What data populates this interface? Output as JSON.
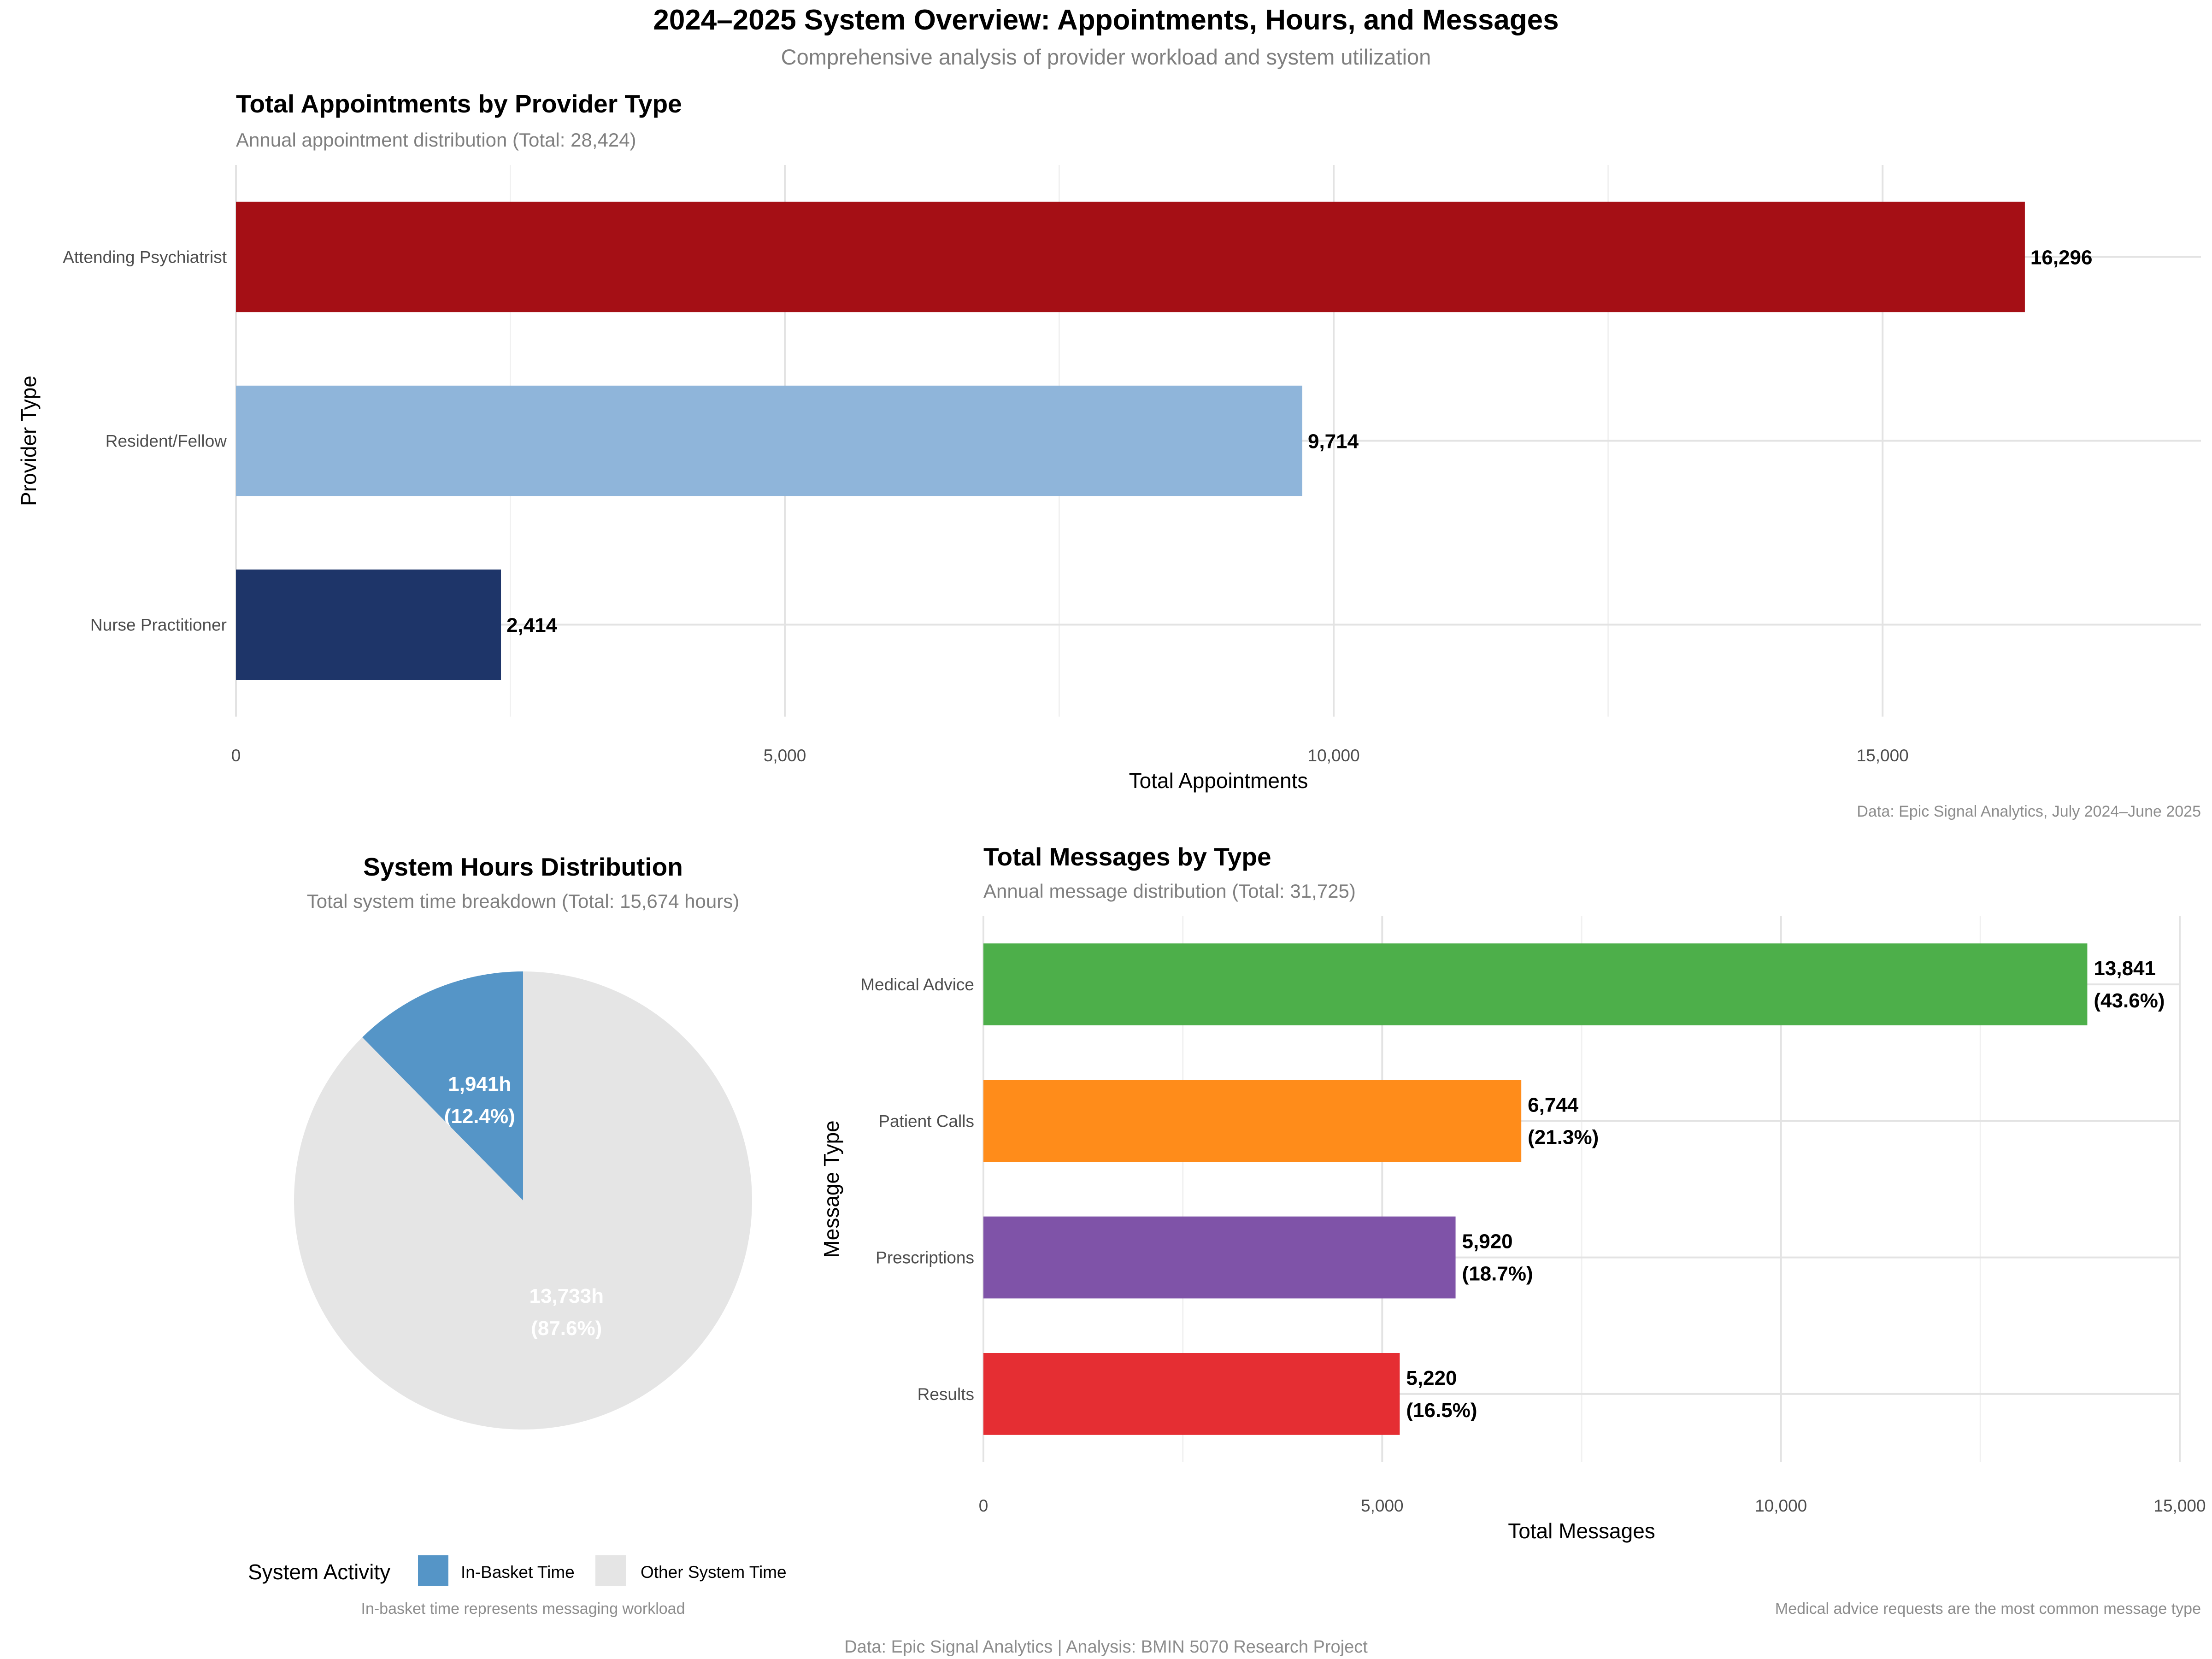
{
  "page": {
    "title": "2024–2025 System Overview: Appointments, Hours, and Messages",
    "subtitle": "Comprehensive analysis of provider workload and system utilization",
    "caption": "Data: Epic Signal Analytics | Analysis: BMIN 5070 Research Project"
  },
  "chart_data": [
    {
      "id": "appointments",
      "type": "bar",
      "orientation": "horizontal",
      "title": "Total Appointments by Provider Type",
      "subtitle": "Annual appointment distribution (Total: 28,424)",
      "xlabel": "Total Appointments",
      "ylabel": "Provider Type",
      "xlim": [
        0,
        17900
      ],
      "xticks": [
        0,
        5000,
        10000,
        15000
      ],
      "xtick_labels": [
        "0",
        "5,000",
        "10,000",
        "15,000"
      ],
      "categories": [
        "Attending Psychiatrist",
        "Resident/Fellow",
        "Nurse Practitioner"
      ],
      "values": [
        16296,
        9714,
        2414
      ],
      "value_labels": [
        "16,296",
        "9,714",
        "2,414"
      ],
      "colors": [
        "#A50F15",
        "#8FB5DA",
        "#1E3569"
      ],
      "caption": "Data: Epic Signal Analytics, July 2024–June 2025",
      "grid": true
    },
    {
      "id": "hours",
      "type": "pie",
      "title": "System Hours Distribution",
      "subtitle": "Total system time breakdown (Total: 15,674 hours)",
      "slices": [
        {
          "label": "In-Basket Time",
          "value": 1941,
          "value_label": "1,941h",
          "pct_label": "(12.4%)",
          "color": "#5595C7"
        },
        {
          "label": "Other System Time",
          "value": 13733,
          "value_label": "13,733h",
          "pct_label": "(87.6%)",
          "color": "#E5E5E5"
        }
      ],
      "legend_title": "System Activity",
      "legend_position": "bottom",
      "caption": "In-basket time represents messaging workload"
    },
    {
      "id": "messages",
      "type": "bar",
      "orientation": "horizontal",
      "title": "Total Messages by Type",
      "subtitle": "Annual message distribution (Total: 31,725)",
      "xlabel": "Total Messages",
      "ylabel": "Message Type",
      "xlim": [
        0,
        15000
      ],
      "xticks": [
        0,
        5000,
        10000,
        15000
      ],
      "xtick_labels": [
        "0",
        "5,000",
        "10,000",
        "15,000"
      ],
      "categories": [
        "Medical Advice",
        "Patient Calls",
        "Prescriptions",
        "Results"
      ],
      "values": [
        13841,
        6744,
        5920,
        5220
      ],
      "value_labels": [
        "13,841",
        "6,744",
        "5,920",
        "5,220"
      ],
      "pct_labels": [
        "(43.6%)",
        "(21.3%)",
        "(18.7%)",
        "(16.5%)"
      ],
      "colors": [
        "#4DAF4A",
        "#FF8C1A",
        "#7F53A8",
        "#E52E33"
      ],
      "caption": "Medical advice requests are the most common message type",
      "grid": true
    }
  ]
}
